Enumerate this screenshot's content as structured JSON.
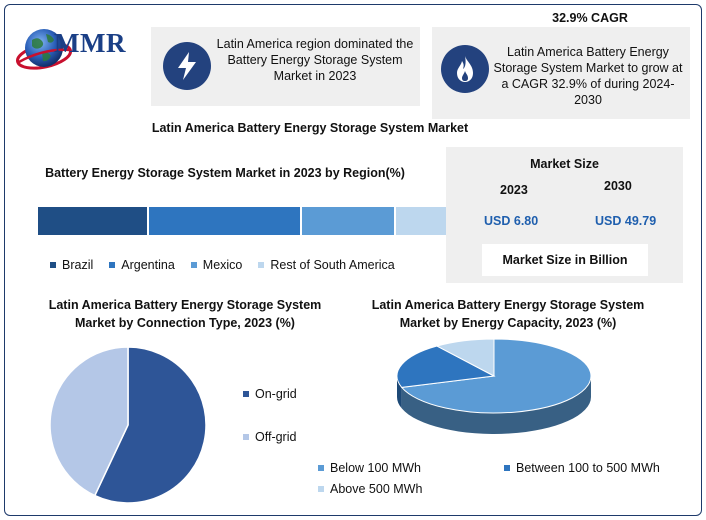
{
  "logo": {
    "text": "MMR"
  },
  "header": {
    "card1_text": "Latin America region dominated the Battery Energy Storage System Market in 2023",
    "card1_icon": "lightning-bolt-icon",
    "cagr_title": "32.9% CAGR",
    "card2_text": "Latin America Battery Energy Storage System Market to grow at a CAGR 32.9% of during 2024-2030",
    "card2_icon": "flame-icon"
  },
  "main_title": "Latin America Battery Energy Storage System Market",
  "market_size": {
    "title": "Market Size",
    "year_a": "2023",
    "year_b": "2030",
    "value_a": "USD 6.80",
    "value_b": "USD 49.79",
    "note": "Market Size in Billion"
  },
  "colors": {
    "dark_navy": "#1f4e85",
    "mid_blue": "#2e75bf",
    "light_blue": "#5b9bd5",
    "pale_blue": "#bdd7ee",
    "navy": "#2e5597",
    "grey_blue": "#b4c7e7"
  },
  "chart_data": [
    {
      "type": "bar",
      "orientation": "horizontal-stacked",
      "title": "Battery Energy Storage System Market in 2023 by Region(%)",
      "series": [
        {
          "name": "Brazil",
          "values": [
            27
          ],
          "color": "#1f4e85"
        },
        {
          "name": "Argentina",
          "values": [
            37
          ],
          "color": "#2e75bf"
        },
        {
          "name": "Mexico",
          "values": [
            23
          ],
          "color": "#5b9bd5"
        },
        {
          "name": "Rest of South America",
          "values": [
            13
          ],
          "color": "#bdd7ee"
        }
      ],
      "legend": "bottom"
    },
    {
      "type": "pie",
      "title": "Latin America Battery Energy Storage System Market by Connection Type, 2023 (%)",
      "slices": [
        {
          "label": "On-grid",
          "value": 57,
          "color": "#2e5597"
        },
        {
          "label": "Off-grid",
          "value": 43,
          "color": "#b4c7e7"
        }
      ],
      "legend": "right"
    },
    {
      "type": "pie",
      "style": "3d",
      "title": "Latin America Battery Energy Storage System Market by Energy Capacity, 2023 (%)",
      "slices": [
        {
          "label": "Below 100 MWh",
          "value": 70,
          "color": "#5b9bd5"
        },
        {
          "label": "Between 100 to 500 MWh",
          "value": 20,
          "color": "#2e75bf"
        },
        {
          "label": "Above 500 MWh",
          "value": 10,
          "color": "#bdd7ee"
        }
      ],
      "legend": "bottom"
    }
  ]
}
